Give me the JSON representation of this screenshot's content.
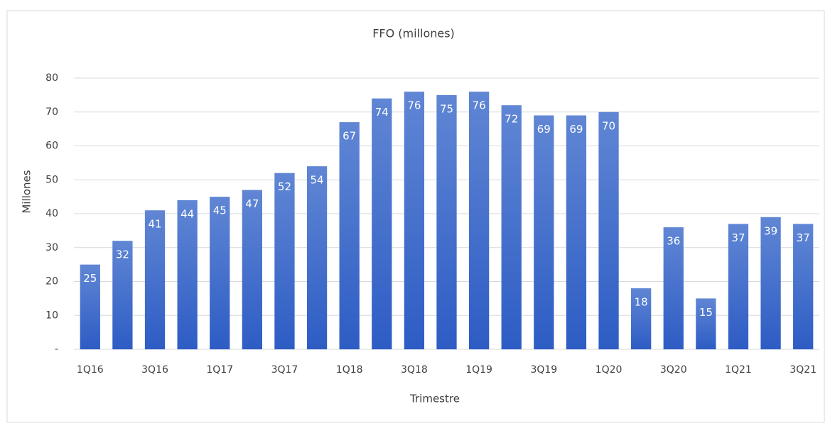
{
  "chart_data": {
    "type": "bar",
    "title": "FFO (millones)",
    "x_label": "Trimestre",
    "y_label": "Millones",
    "categories": [
      "1Q16",
      null,
      "3Q16",
      null,
      "1Q17",
      null,
      "3Q17",
      null,
      "1Q18",
      null,
      "3Q18",
      null,
      "1Q19",
      null,
      "3Q19",
      null,
      "1Q20",
      null,
      "3Q20",
      null,
      "1Q21",
      null,
      "3Q21"
    ],
    "values": [
      25,
      32,
      41,
      44,
      45,
      47,
      52,
      54,
      67,
      74,
      76,
      75,
      76,
      72,
      69,
      69,
      70,
      18,
      36,
      15,
      37,
      39,
      37
    ],
    "color": "#4472c4",
    "ylim": [
      0,
      80
    ],
    "yticks": [
      {
        "value": 0,
        "label": "-"
      },
      10,
      20,
      30,
      40,
      50,
      60,
      70,
      80
    ],
    "grid": true
  }
}
